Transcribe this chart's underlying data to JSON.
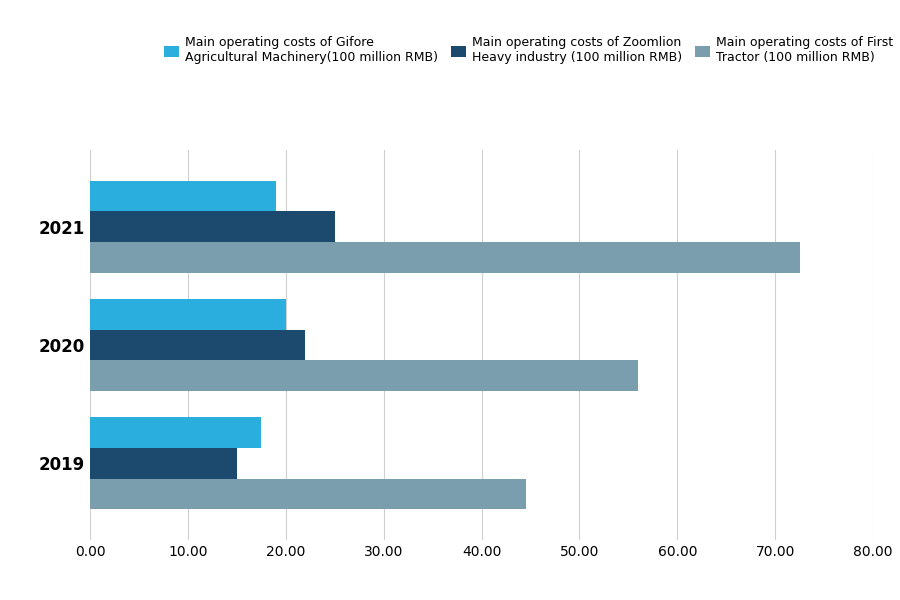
{
  "years": [
    "2019",
    "2020",
    "2021"
  ],
  "gifore": [
    17.5,
    20.0,
    19.0
  ],
  "zoomlion": [
    15.0,
    22.0,
    25.0
  ],
  "first_tractor": [
    44.5,
    56.0,
    72.5
  ],
  "gifore_color": "#29AEDE",
  "zoomlion_color": "#1C4A6E",
  "first_tractor_color": "#7B9EAE",
  "legend_gifore": "Main operating costs of Gifore\nAgricultural Machinery(100 million RMB)",
  "legend_zoomlion": "Main operating costs of Zoomlion\nHeavy industry (100 million RMB)",
  "legend_first_tractor": "Main operating costs of First\nTractor (100 million RMB)",
  "xlim": [
    0,
    80
  ],
  "xticks": [
    0.0,
    10.0,
    20.0,
    30.0,
    40.0,
    50.0,
    60.0,
    70.0,
    80.0
  ],
  "xtick_labels": [
    "0.00",
    "10.00",
    "20.00",
    "30.00",
    "40.00",
    "50.00",
    "60.00",
    "70.00",
    "80.00"
  ],
  "background_color": "#ffffff",
  "grid_color": "#d0d0d0"
}
